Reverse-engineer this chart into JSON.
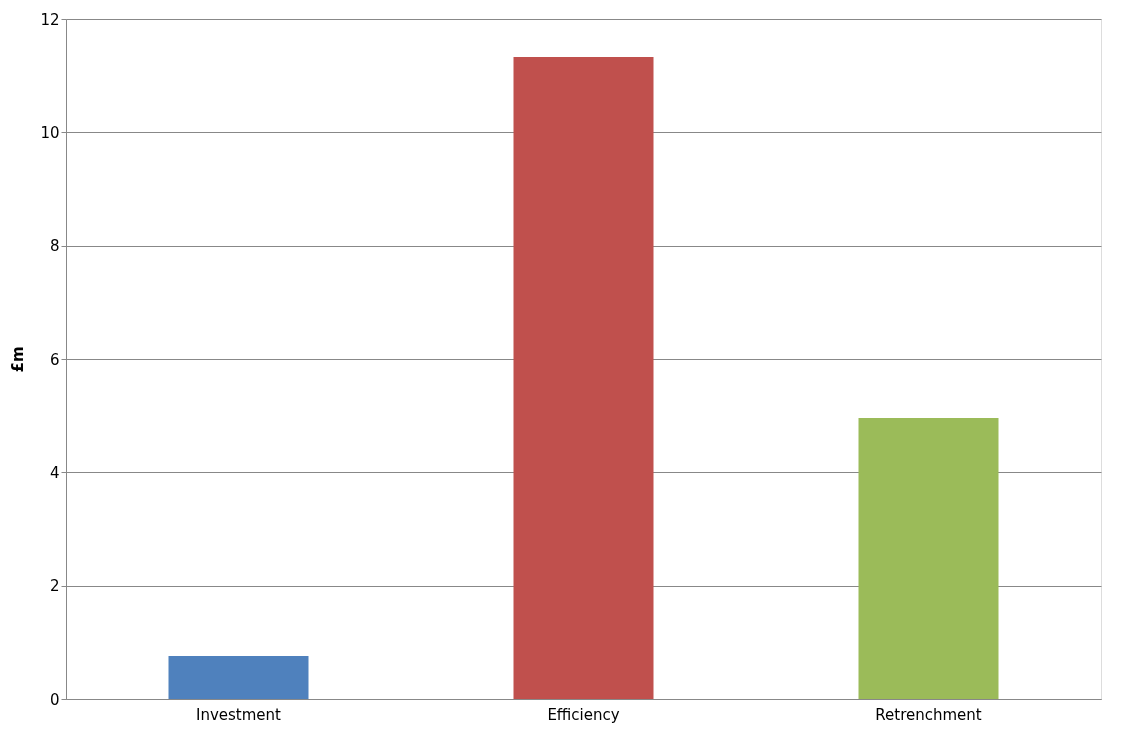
{
  "chart_data": {
    "type": "bar",
    "categories": [
      "Investment",
      "Efficiency",
      "Retrenchment"
    ],
    "values": [
      0.76,
      11.33,
      4.96
    ],
    "colors": [
      "#4f81bd",
      "#c0504d",
      "#9bbb59"
    ],
    "ylabel": "£m",
    "ylim": [
      0,
      12
    ],
    "yticks": [
      0,
      2,
      4,
      6,
      8,
      10,
      12
    ],
    "grid": "y"
  }
}
